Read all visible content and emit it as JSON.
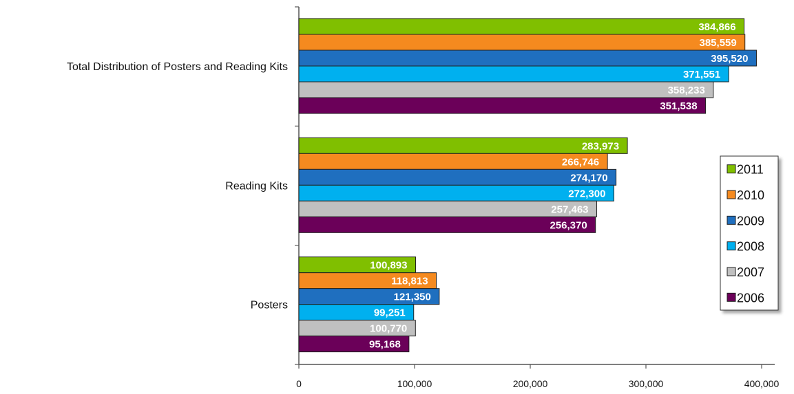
{
  "chart_data": {
    "type": "bar",
    "orientation": "horizontal",
    "categories": [
      "Total Distribution of Posters and Reading Kits",
      "Reading Kits",
      "Posters"
    ],
    "series": [
      {
        "name": "2011",
        "color": "#80bf00",
        "values": [
          384866,
          283973,
          100893
        ],
        "labels": [
          "384,866",
          "283,973",
          "100,893"
        ]
      },
      {
        "name": "2010",
        "color": "#f58a1f",
        "values": [
          385559,
          266746,
          118813
        ],
        "labels": [
          "385,559",
          "266,746",
          "118,813"
        ]
      },
      {
        "name": "2009",
        "color": "#1f6fbf",
        "values": [
          395520,
          274170,
          121350
        ],
        "labels": [
          "395,520",
          "274,170",
          "121,350"
        ]
      },
      {
        "name": "2008",
        "color": "#00b0ef",
        "values": [
          371551,
          272300,
          99251
        ],
        "labels": [
          "371,551",
          "272,300",
          "99,251"
        ]
      },
      {
        "name": "2007",
        "color": "#c0c0c0",
        "values": [
          358233,
          257463,
          100770
        ],
        "labels": [
          "358,233",
          "257,463",
          "100,770"
        ]
      },
      {
        "name": "2006",
        "color": "#6b0059",
        "values": [
          351538,
          256370,
          95168
        ],
        "labels": [
          "351,538",
          "256,370",
          "95,168"
        ]
      }
    ],
    "xlim": [
      0,
      400000
    ],
    "xticks": [
      0,
      100000,
      200000,
      300000,
      400000
    ],
    "xtick_labels": [
      "0",
      "100,000",
      "200,000",
      "300,000",
      "400,000"
    ],
    "title": "",
    "xlabel": "",
    "ylabel": "",
    "grid": false,
    "legend_position": "right"
  }
}
